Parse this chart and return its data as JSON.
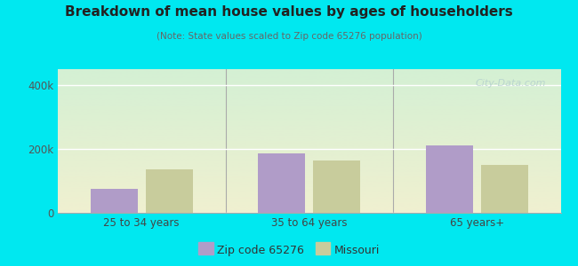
{
  "title": "Breakdown of mean house values by ages of householders",
  "subtitle": "(Note: State values scaled to Zip code 65276 population)",
  "categories": [
    "25 to 34 years",
    "35 to 64 years",
    "65 years+"
  ],
  "zip_values": [
    75000,
    185000,
    210000
  ],
  "state_values": [
    135000,
    165000,
    150000
  ],
  "zip_color": "#b09cc8",
  "state_color": "#c8cc9c",
  "ylim": [
    0,
    450000
  ],
  "yticks": [
    0,
    200000,
    400000
  ],
  "ytick_labels": [
    "0",
    "200k",
    "400k"
  ],
  "bg_top_color": "#d4f0d4",
  "bg_bottom_color": "#f0f0d0",
  "outer_bg": "#00e8f0",
  "legend_zip_label": "Zip code 65276",
  "legend_state_label": "Missouri",
  "watermark": "City-Data.com",
  "bar_width": 0.28,
  "bar_gap": 0.05
}
